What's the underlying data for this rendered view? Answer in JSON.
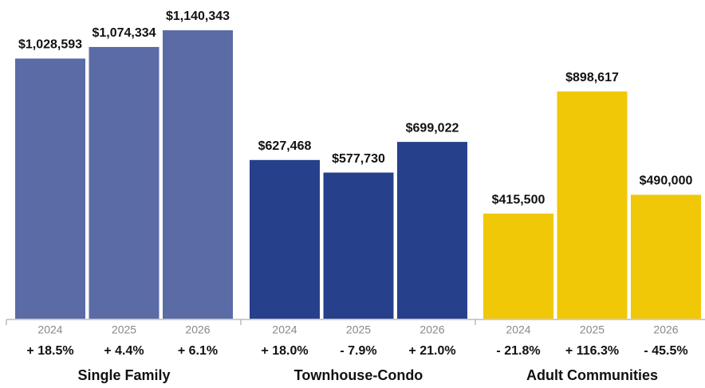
{
  "chart_data": {
    "type": "bar",
    "groups": [
      {
        "name": "Single Family",
        "color": "#5b6ba6",
        "categories": [
          "2024",
          "2025",
          "2026"
        ],
        "values": [
          1028593,
          1074334,
          1140343
        ],
        "value_labels": [
          "$1,028,593",
          "$1,074,334",
          "$1,140,343"
        ],
        "change_labels": [
          "+ 18.5%",
          "+ 4.4%",
          "+ 6.1%"
        ]
      },
      {
        "name": "Townhouse-Condo",
        "color": "#27408b",
        "categories": [
          "2024",
          "2025",
          "2026"
        ],
        "values": [
          627468,
          577730,
          699022
        ],
        "value_labels": [
          "$627,468",
          "$577,730",
          "$699,022"
        ],
        "change_labels": [
          "+ 18.0%",
          "- 7.9%",
          "+ 21.0%"
        ]
      },
      {
        "name": "Adult Communities",
        "color": "#f0c808",
        "categories": [
          "2024",
          "2025",
          "2026"
        ],
        "values": [
          415500,
          898617,
          490000
        ],
        "value_labels": [
          "$415,500",
          "$898,617",
          "$490,000"
        ],
        "change_labels": [
          "- 21.8%",
          "+ 116.3%",
          "- 45.5%"
        ]
      }
    ]
  }
}
